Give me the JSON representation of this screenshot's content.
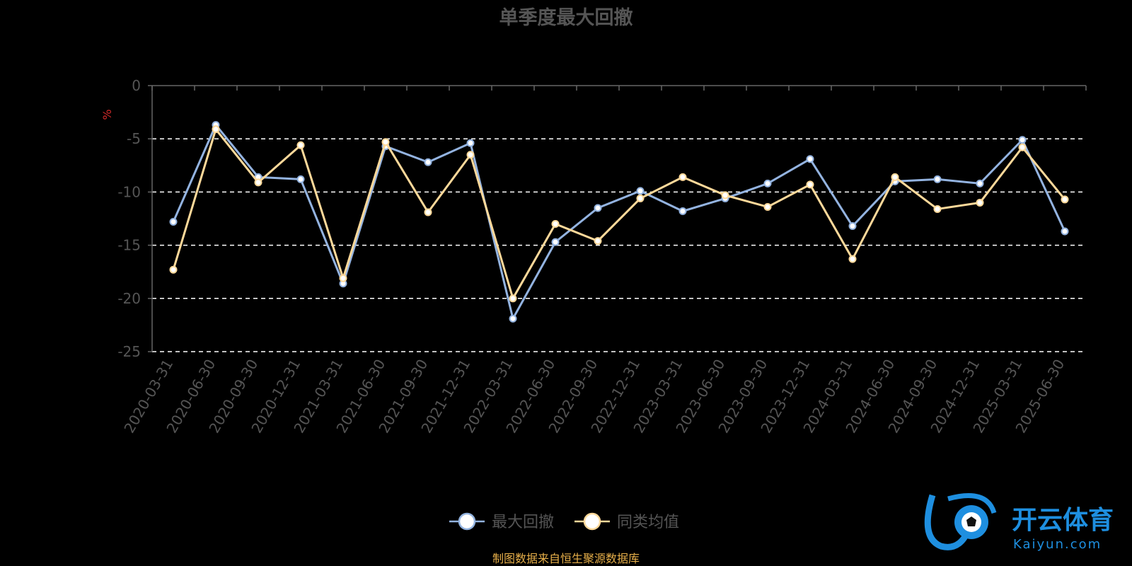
{
  "chart_data": {
    "type": "line",
    "title": "单季度最大回撤",
    "ylabel": "%",
    "ylim": [
      -25,
      0
    ],
    "yticks": [
      0,
      -5,
      -10,
      -15,
      -20,
      -25
    ],
    "grid": true,
    "legend_position": "bottom",
    "categories": [
      "2020-03-31",
      "2020-06-30",
      "2020-09-30",
      "2020-12-31",
      "2021-03-31",
      "2021-06-30",
      "2021-09-30",
      "2021-12-31",
      "2022-03-31",
      "2022-06-30",
      "2022-09-30",
      "2022-12-31",
      "2023-03-31",
      "2023-06-30",
      "2023-09-30",
      "2023-12-31",
      "2024-03-31",
      "2024-06-30",
      "2024-09-30",
      "2024-12-31",
      "2025-03-31",
      "2025-06-30"
    ],
    "series": [
      {
        "name": "最大回撤",
        "color": "#93b3e0",
        "values": [
          -12.8,
          -3.7,
          -8.6,
          -8.8,
          -18.6,
          -5.7,
          -7.2,
          -5.4,
          -21.9,
          -14.7,
          -11.5,
          -9.9,
          -11.8,
          -10.6,
          -9.2,
          -6.9,
          -13.2,
          -9.0,
          -8.8,
          -9.2,
          -5.1,
          -13.7
        ]
      },
      {
        "name": "同类均值",
        "color": "#ffd99a",
        "values": [
          -17.3,
          -4.1,
          -9.1,
          -5.6,
          -18.1,
          -5.3,
          -11.9,
          -6.5,
          -20.0,
          -13.0,
          -14.6,
          -10.6,
          -8.6,
          -10.3,
          -11.4,
          -9.3,
          -16.3,
          -8.6,
          -11.6,
          -11.0,
          -5.8,
          -10.7
        ]
      }
    ]
  },
  "source_note": "制图数据来自恒生聚源数据库",
  "watermark": {
    "cn": "开云体育",
    "en": "Kaiyun.com"
  },
  "colors": {
    "axis": "#666666",
    "text": "#555555",
    "grid": "#ffffff",
    "ylabel": "#d42a2a",
    "source": "#e8b04a",
    "logo": "#1e8fe0"
  }
}
